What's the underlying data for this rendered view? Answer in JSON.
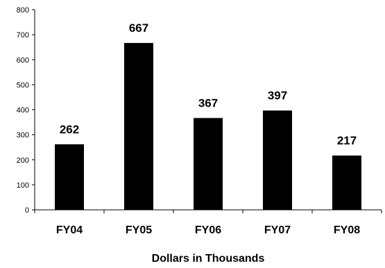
{
  "chart_data": {
    "type": "bar",
    "categories": [
      "FY04",
      "FY05",
      "FY06",
      "FY07",
      "FY08"
    ],
    "values": [
      262,
      667,
      367,
      397,
      217
    ],
    "data_labels": [
      "262",
      "667",
      "367",
      "397",
      "217"
    ],
    "xlabel": "Dollars in Thousands",
    "ylabel": "",
    "ylim": [
      0,
      800
    ],
    "yticks": [
      0,
      100,
      200,
      300,
      400,
      500,
      600,
      700,
      800
    ],
    "grid": false,
    "legend": "none",
    "bar_color": "#000000"
  }
}
